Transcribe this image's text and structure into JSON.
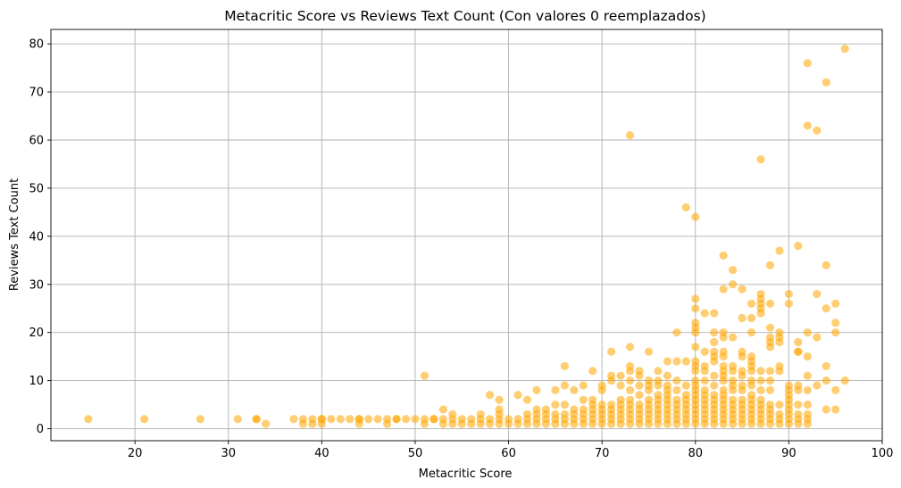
{
  "chart_data": {
    "type": "scatter",
    "title": "Metacritic Score vs Reviews Text Count (Con valores 0 reemplazados)",
    "xlabel": "Metacritic Score",
    "ylabel": "Reviews Text Count",
    "xlim": [
      11,
      100
    ],
    "ylim": [
      -2.5,
      83
    ],
    "xticks": [
      20,
      30,
      40,
      50,
      60,
      70,
      80,
      90,
      100
    ],
    "yticks": [
      0,
      10,
      20,
      30,
      40,
      50,
      60,
      70,
      80
    ],
    "grid": true,
    "marker_color": "#FFA500",
    "marker_alpha": 0.55,
    "points": [
      [
        15,
        2
      ],
      [
        21,
        2
      ],
      [
        27,
        2
      ],
      [
        31,
        2
      ],
      [
        33,
        2
      ],
      [
        33,
        2
      ],
      [
        34,
        1
      ],
      [
        37,
        2
      ],
      [
        38,
        2
      ],
      [
        38,
        1
      ],
      [
        39,
        2
      ],
      [
        39,
        1
      ],
      [
        40,
        2
      ],
      [
        40,
        1
      ],
      [
        40,
        2
      ],
      [
        41,
        2
      ],
      [
        42,
        2
      ],
      [
        43,
        2
      ],
      [
        44,
        2
      ],
      [
        44,
        1
      ],
      [
        44,
        2
      ],
      [
        45,
        2
      ],
      [
        46,
        2
      ],
      [
        47,
        2
      ],
      [
        47,
        1
      ],
      [
        48,
        2
      ],
      [
        48,
        2
      ],
      [
        49,
        2
      ],
      [
        50,
        2
      ],
      [
        51,
        2
      ],
      [
        51,
        1
      ],
      [
        51,
        11
      ],
      [
        52,
        2
      ],
      [
        52,
        2
      ],
      [
        53,
        2
      ],
      [
        53,
        1
      ],
      [
        53,
        4
      ],
      [
        54,
        2
      ],
      [
        54,
        1
      ],
      [
        54,
        3
      ],
      [
        55,
        2
      ],
      [
        55,
        1
      ],
      [
        56,
        2
      ],
      [
        56,
        1
      ],
      [
        57,
        2
      ],
      [
        57,
        1
      ],
      [
        57,
        3
      ],
      [
        58,
        2
      ],
      [
        58,
        1
      ],
      [
        58,
        7
      ],
      [
        59,
        2
      ],
      [
        59,
        1
      ],
      [
        59,
        3
      ],
      [
        59,
        4
      ],
      [
        59,
        6
      ],
      [
        60,
        2
      ],
      [
        60,
        1
      ],
      [
        61,
        2
      ],
      [
        61,
        1
      ],
      [
        61,
        7
      ],
      [
        62,
        2
      ],
      [
        62,
        1
      ],
      [
        62,
        3
      ],
      [
        62,
        6
      ],
      [
        63,
        2
      ],
      [
        63,
        1
      ],
      [
        63,
        3
      ],
      [
        63,
        4
      ],
      [
        63,
        8
      ],
      [
        64,
        2
      ],
      [
        64,
        1
      ],
      [
        64,
        3
      ],
      [
        64,
        4
      ],
      [
        65,
        2
      ],
      [
        65,
        1
      ],
      [
        65,
        3
      ],
      [
        65,
        5
      ],
      [
        65,
        8
      ],
      [
        66,
        2
      ],
      [
        66,
        1
      ],
      [
        66,
        3
      ],
      [
        66,
        5
      ],
      [
        66,
        9
      ],
      [
        66,
        13
      ],
      [
        67,
        2
      ],
      [
        67,
        1
      ],
      [
        67,
        3
      ],
      [
        67,
        4
      ],
      [
        67,
        8
      ],
      [
        68,
        2
      ],
      [
        68,
        1
      ],
      [
        68,
        3
      ],
      [
        68,
        4
      ],
      [
        68,
        6
      ],
      [
        68,
        9
      ],
      [
        69,
        2
      ],
      [
        69,
        1
      ],
      [
        69,
        3
      ],
      [
        69,
        4
      ],
      [
        69,
        5
      ],
      [
        69,
        6
      ],
      [
        69,
        12
      ],
      [
        70,
        2
      ],
      [
        70,
        1
      ],
      [
        70,
        3
      ],
      [
        70,
        4
      ],
      [
        70,
        5
      ],
      [
        70,
        8
      ],
      [
        70,
        9
      ],
      [
        71,
        2
      ],
      [
        71,
        1
      ],
      [
        71,
        3
      ],
      [
        71,
        4
      ],
      [
        71,
        5
      ],
      [
        71,
        10
      ],
      [
        71,
        11
      ],
      [
        71,
        16
      ],
      [
        72,
        2
      ],
      [
        72,
        1
      ],
      [
        72,
        3
      ],
      [
        72,
        4
      ],
      [
        72,
        5
      ],
      [
        72,
        6
      ],
      [
        72,
        9
      ],
      [
        72,
        11
      ],
      [
        73,
        2
      ],
      [
        73,
        1
      ],
      [
        73,
        3
      ],
      [
        73,
        4
      ],
      [
        73,
        5
      ],
      [
        73,
        6
      ],
      [
        73,
        8
      ],
      [
        73,
        10
      ],
      [
        73,
        12
      ],
      [
        73,
        13
      ],
      [
        73,
        17
      ],
      [
        73,
        61
      ],
      [
        74,
        2
      ],
      [
        74,
        1
      ],
      [
        74,
        3
      ],
      [
        74,
        4
      ],
      [
        74,
        5
      ],
      [
        74,
        7
      ],
      [
        74,
        9
      ],
      [
        74,
        11
      ],
      [
        74,
        12
      ],
      [
        75,
        2
      ],
      [
        75,
        1
      ],
      [
        75,
        3
      ],
      [
        75,
        4
      ],
      [
        75,
        5
      ],
      [
        75,
        6
      ],
      [
        75,
        8
      ],
      [
        75,
        9
      ],
      [
        75,
        10
      ],
      [
        75,
        16
      ],
      [
        76,
        2
      ],
      [
        76,
        1
      ],
      [
        76,
        3
      ],
      [
        76,
        4
      ],
      [
        76,
        5
      ],
      [
        76,
        6
      ],
      [
        76,
        7
      ],
      [
        76,
        9
      ],
      [
        76,
        10
      ],
      [
        76,
        12
      ],
      [
        77,
        2
      ],
      [
        77,
        1
      ],
      [
        77,
        3
      ],
      [
        77,
        4
      ],
      [
        77,
        5
      ],
      [
        77,
        6
      ],
      [
        77,
        7
      ],
      [
        77,
        8
      ],
      [
        77,
        9
      ],
      [
        77,
        11
      ],
      [
        77,
        14
      ],
      [
        78,
        2
      ],
      [
        78,
        1
      ],
      [
        78,
        3
      ],
      [
        78,
        4
      ],
      [
        78,
        5
      ],
      [
        78,
        6
      ],
      [
        78,
        8
      ],
      [
        78,
        10
      ],
      [
        78,
        14
      ],
      [
        78,
        20
      ],
      [
        79,
        2
      ],
      [
        79,
        1
      ],
      [
        79,
        3
      ],
      [
        79,
        4
      ],
      [
        79,
        5
      ],
      [
        79,
        6
      ],
      [
        79,
        7
      ],
      [
        79,
        9
      ],
      [
        79,
        14
      ],
      [
        79,
        46
      ],
      [
        80,
        2
      ],
      [
        80,
        1
      ],
      [
        80,
        3
      ],
      [
        80,
        4
      ],
      [
        80,
        5
      ],
      [
        80,
        6
      ],
      [
        80,
        7
      ],
      [
        80,
        8
      ],
      [
        80,
        9
      ],
      [
        80,
        10
      ],
      [
        80,
        12
      ],
      [
        80,
        13
      ],
      [
        80,
        14
      ],
      [
        80,
        17
      ],
      [
        80,
        20
      ],
      [
        80,
        21
      ],
      [
        80,
        22
      ],
      [
        80,
        25
      ],
      [
        80,
        27
      ],
      [
        80,
        44
      ],
      [
        81,
        2
      ],
      [
        81,
        1
      ],
      [
        81,
        3
      ],
      [
        81,
        4
      ],
      [
        81,
        5
      ],
      [
        81,
        6
      ],
      [
        81,
        7
      ],
      [
        81,
        8
      ],
      [
        81,
        10
      ],
      [
        81,
        12
      ],
      [
        81,
        13
      ],
      [
        81,
        16
      ],
      [
        81,
        24
      ],
      [
        82,
        2
      ],
      [
        82,
        1
      ],
      [
        82,
        3
      ],
      [
        82,
        4
      ],
      [
        82,
        5
      ],
      [
        82,
        6
      ],
      [
        82,
        7
      ],
      [
        82,
        9
      ],
      [
        82,
        11
      ],
      [
        82,
        14
      ],
      [
        82,
        15
      ],
      [
        82,
        16
      ],
      [
        82,
        18
      ],
      [
        82,
        20
      ],
      [
        82,
        24
      ],
      [
        83,
        2
      ],
      [
        83,
        1
      ],
      [
        83,
        3
      ],
      [
        83,
        4
      ],
      [
        83,
        5
      ],
      [
        83,
        6
      ],
      [
        83,
        7
      ],
      [
        83,
        8
      ],
      [
        83,
        10
      ],
      [
        83,
        11
      ],
      [
        83,
        12
      ],
      [
        83,
        13
      ],
      [
        83,
        15
      ],
      [
        83,
        16
      ],
      [
        83,
        19
      ],
      [
        83,
        20
      ],
      [
        83,
        29
      ],
      [
        83,
        36
      ],
      [
        84,
        2
      ],
      [
        84,
        1
      ],
      [
        84,
        3
      ],
      [
        84,
        4
      ],
      [
        84,
        5
      ],
      [
        84,
        6
      ],
      [
        84,
        8
      ],
      [
        84,
        9
      ],
      [
        84,
        10
      ],
      [
        84,
        12
      ],
      [
        84,
        13
      ],
      [
        84,
        19
      ],
      [
        84,
        30
      ],
      [
        84,
        33
      ],
      [
        85,
        2
      ],
      [
        85,
        1
      ],
      [
        85,
        3
      ],
      [
        85,
        4
      ],
      [
        85,
        5
      ],
      [
        85,
        6
      ],
      [
        85,
        8
      ],
      [
        85,
        9
      ],
      [
        85,
        11
      ],
      [
        85,
        12
      ],
      [
        85,
        15
      ],
      [
        85,
        16
      ],
      [
        85,
        23
      ],
      [
        85,
        29
      ],
      [
        86,
        2
      ],
      [
        86,
        1
      ],
      [
        86,
        3
      ],
      [
        86,
        4
      ],
      [
        86,
        5
      ],
      [
        86,
        6
      ],
      [
        86,
        7
      ],
      [
        86,
        9
      ],
      [
        86,
        10
      ],
      [
        86,
        12
      ],
      [
        86,
        13
      ],
      [
        86,
        14
      ],
      [
        86,
        15
      ],
      [
        86,
        20
      ],
      [
        86,
        23
      ],
      [
        86,
        26
      ],
      [
        87,
        2
      ],
      [
        87,
        1
      ],
      [
        87,
        3
      ],
      [
        87,
        4
      ],
      [
        87,
        5
      ],
      [
        87,
        6
      ],
      [
        87,
        8
      ],
      [
        87,
        10
      ],
      [
        87,
        12
      ],
      [
        87,
        24
      ],
      [
        87,
        25
      ],
      [
        87,
        26
      ],
      [
        87,
        27
      ],
      [
        87,
        28
      ],
      [
        87,
        56
      ],
      [
        88,
        2
      ],
      [
        88,
        1
      ],
      [
        88,
        3
      ],
      [
        88,
        4
      ],
      [
        88,
        5
      ],
      [
        88,
        8
      ],
      [
        88,
        10
      ],
      [
        88,
        12
      ],
      [
        88,
        17
      ],
      [
        88,
        18
      ],
      [
        88,
        19
      ],
      [
        88,
        21
      ],
      [
        88,
        26
      ],
      [
        88,
        34
      ],
      [
        89,
        2
      ],
      [
        89,
        1
      ],
      [
        89,
        3
      ],
      [
        89,
        5
      ],
      [
        89,
        12
      ],
      [
        89,
        13
      ],
      [
        89,
        18
      ],
      [
        89,
        19
      ],
      [
        89,
        20
      ],
      [
        89,
        37
      ],
      [
        90,
        2
      ],
      [
        90,
        1
      ],
      [
        90,
        3
      ],
      [
        90,
        4
      ],
      [
        90,
        5
      ],
      [
        90,
        6
      ],
      [
        90,
        7
      ],
      [
        90,
        8
      ],
      [
        90,
        9
      ],
      [
        90,
        26
      ],
      [
        90,
        28
      ],
      [
        91,
        2
      ],
      [
        91,
        1
      ],
      [
        91,
        3
      ],
      [
        91,
        5
      ],
      [
        91,
        8
      ],
      [
        91,
        9
      ],
      [
        91,
        16
      ],
      [
        91,
        16
      ],
      [
        91,
        18
      ],
      [
        91,
        38
      ],
      [
        92,
        2
      ],
      [
        92,
        1
      ],
      [
        92,
        3
      ],
      [
        92,
        5
      ],
      [
        92,
        8
      ],
      [
        92,
        11
      ],
      [
        92,
        15
      ],
      [
        92,
        20
      ],
      [
        92,
        63
      ],
      [
        92,
        76
      ],
      [
        93,
        9
      ],
      [
        93,
        19
      ],
      [
        93,
        28
      ],
      [
        93,
        62
      ],
      [
        94,
        4
      ],
      [
        94,
        10
      ],
      [
        94,
        13
      ],
      [
        94,
        25
      ],
      [
        94,
        34
      ],
      [
        94,
        72
      ],
      [
        95,
        4
      ],
      [
        95,
        8
      ],
      [
        95,
        20
      ],
      [
        95,
        22
      ],
      [
        95,
        26
      ],
      [
        96,
        10
      ],
      [
        96,
        79
      ]
    ]
  }
}
